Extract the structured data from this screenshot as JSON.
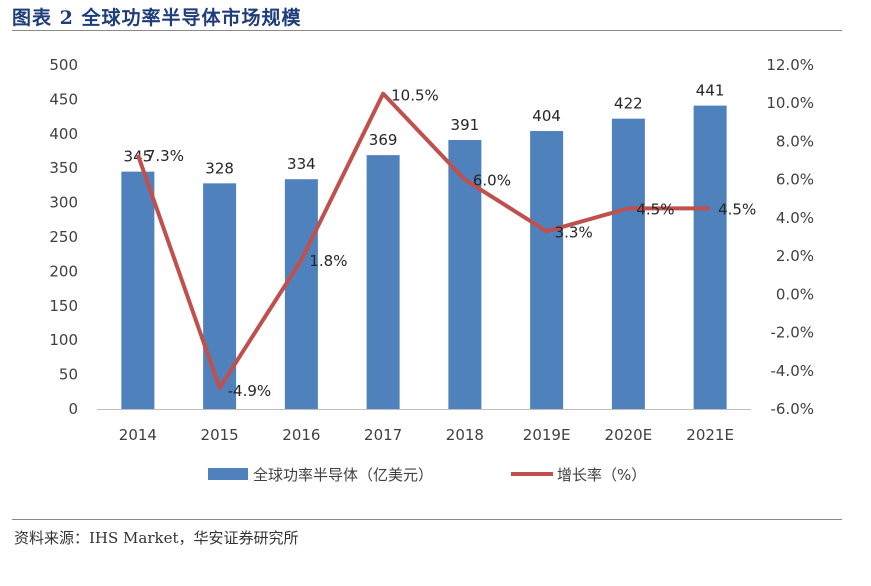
{
  "figure": {
    "title": "图表 2 全球功率半导体市场规模",
    "source": "资料来源：IHS Market，华安证券研究所"
  },
  "colors": {
    "bar": "#4f81bd",
    "line": "#c0504d",
    "title": "#1f3d7a",
    "axis_text": "#404040",
    "label_text": "#262626"
  },
  "chart_data": {
    "type": "bar",
    "categories": [
      "2014",
      "2015",
      "2016",
      "2017",
      "2018",
      "2019E",
      "2020E",
      "2021E"
    ],
    "series": [
      {
        "name": "全球功率半导体（亿美元）",
        "type": "bar",
        "axis": "left",
        "values": [
          345,
          328,
          334,
          369,
          391,
          404,
          422,
          441
        ],
        "labels": [
          "345",
          "328",
          "334",
          "369",
          "391",
          "404",
          "422",
          "441"
        ]
      },
      {
        "name": "增长率（%）",
        "type": "line",
        "axis": "right",
        "values": [
          7.3,
          -4.9,
          1.8,
          10.5,
          6.0,
          3.3,
          4.5,
          4.5
        ],
        "labels": [
          "7.3%",
          "-4.9%",
          "1.8%",
          "10.5%",
          "6.0%",
          "3.3%",
          "4.5%",
          "4.5%"
        ]
      }
    ],
    "y_left": {
      "range": [
        0,
        500
      ],
      "ticks": [
        0,
        50,
        100,
        150,
        200,
        250,
        300,
        350,
        400,
        450,
        500
      ],
      "tick_labels": [
        "0",
        "50",
        "100",
        "150",
        "200",
        "250",
        "300",
        "350",
        "400",
        "450",
        "500"
      ]
    },
    "y_right": {
      "range": [
        -6.0,
        12.0
      ],
      "ticks": [
        -6,
        -4,
        -2,
        0,
        2,
        4,
        6,
        8,
        10,
        12
      ],
      "tick_labels": [
        "-6.0%",
        "-4.0%",
        "-2.0%",
        "0.0%",
        "2.0%",
        "4.0%",
        "6.0%",
        "8.0%",
        "10.0%",
        "12.0%"
      ]
    },
    "grid": false,
    "legend_position": "bottom"
  }
}
